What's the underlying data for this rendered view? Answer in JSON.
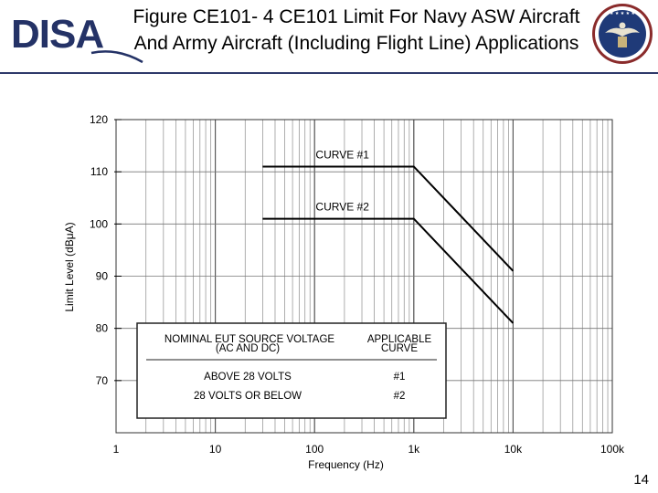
{
  "header": {
    "logo_text": "DISA",
    "title": "Figure CE101- 4 CE101 Limit For Navy ASW Aircraft And Army Aircraft (Including Flight Line) Applications",
    "seal_text": "DEFENSE INFORMATION SYSTEMS AGENCY"
  },
  "footer": {
    "page_number": "14"
  },
  "chart_data": {
    "type": "line",
    "xlabel": "Frequency (Hz)",
    "ylabel": "Limit Level (dBμA)",
    "x_scale": "log",
    "xlim": [
      1,
      100000
    ],
    "ylim": [
      60,
      120
    ],
    "x_ticks": [
      {
        "value": 1,
        "label": "1"
      },
      {
        "value": 10,
        "label": "10"
      },
      {
        "value": 100,
        "label": "100"
      },
      {
        "value": 1000,
        "label": "1k"
      },
      {
        "value": 10000,
        "label": "10k"
      },
      {
        "value": 100000,
        "label": "100k"
      }
    ],
    "y_ticks": [
      {
        "value": 70,
        "label": "70"
      },
      {
        "value": 80,
        "label": "80"
      },
      {
        "value": 90,
        "label": "90"
      },
      {
        "value": 100,
        "label": "100"
      },
      {
        "value": 110,
        "label": "110"
      },
      {
        "value": 120,
        "label": "120"
      }
    ],
    "grid": true,
    "series": [
      {
        "name": "CURVE #1",
        "x": [
          30,
          1000,
          10000
        ],
        "y": [
          111,
          111,
          91
        ]
      },
      {
        "name": "CURVE #2",
        "x": [
          30,
          1000,
          10000
        ],
        "y": [
          101,
          101,
          81
        ]
      }
    ],
    "legend_table": {
      "headers": [
        "NOMINAL EUT SOURCE VOLTAGE (AC AND DC)",
        "APPLICABLE CURVE"
      ],
      "rows": [
        [
          "ABOVE 28 VOLTS",
          "#1"
        ],
        [
          "28 VOLTS OR BELOW",
          "#2"
        ]
      ]
    }
  }
}
